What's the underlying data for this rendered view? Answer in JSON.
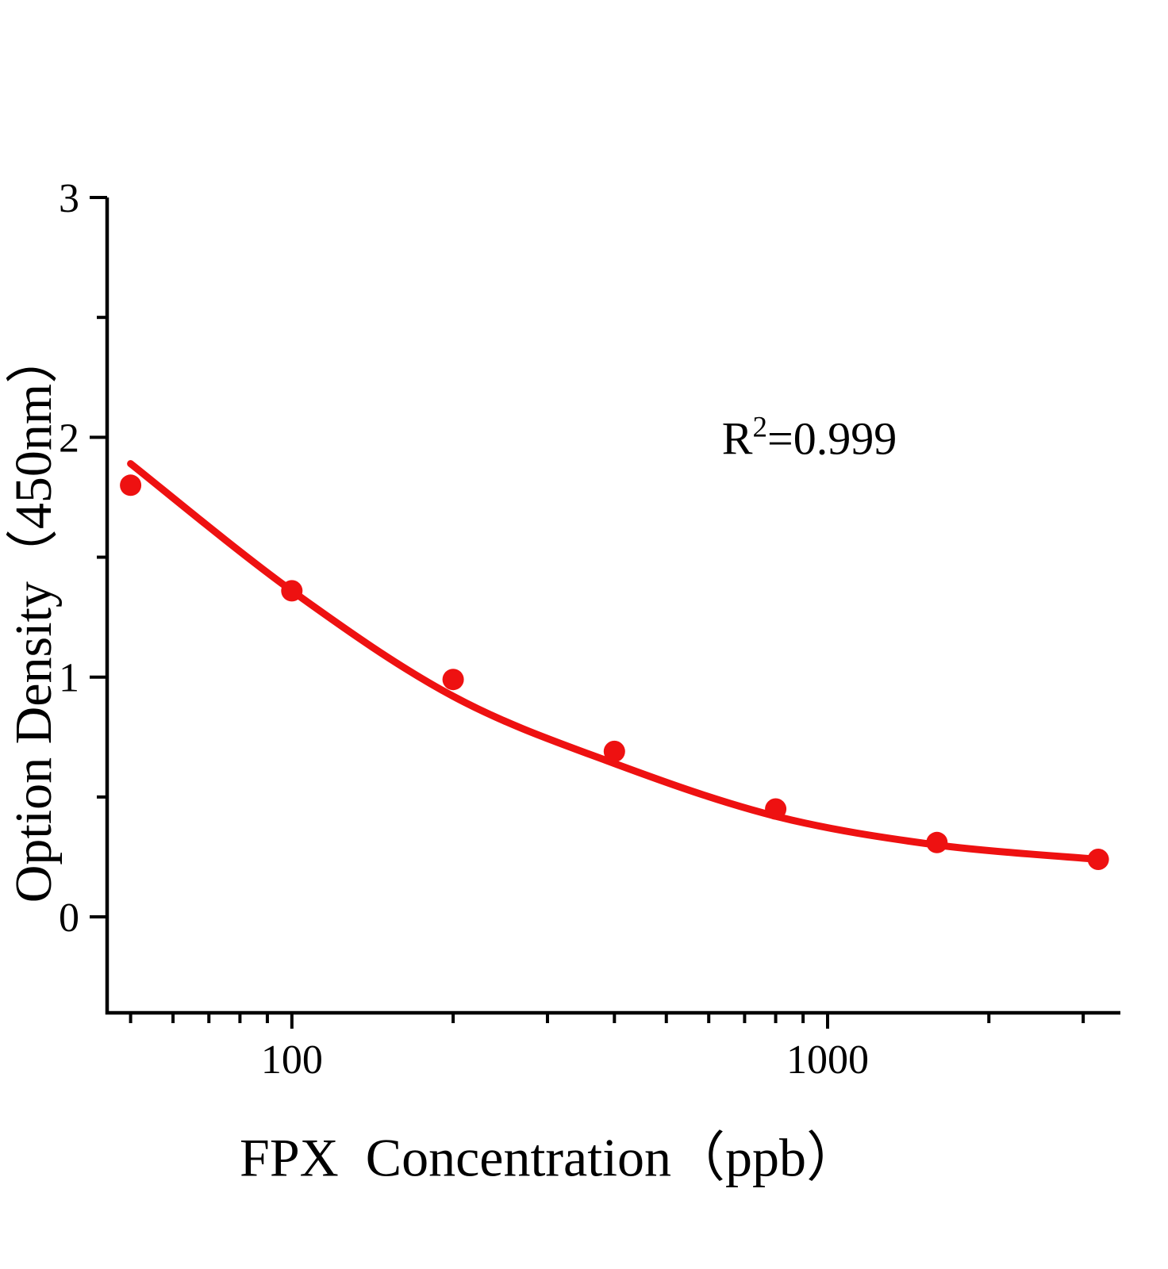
{
  "figure": {
    "background_color": "#ffffff",
    "axis_color": "#000000",
    "accent_color": "#ee1111"
  },
  "chart_data": {
    "type": "scatter",
    "title": "",
    "xlabel": "FPX  Concentration（ppb）",
    "ylabel": "Option Density（450nm）",
    "x_scale": "log",
    "y_scale": "linear",
    "xlim": [
      45.2,
      3520
    ],
    "ylim": [
      -0.4,
      3
    ],
    "x_major_ticks": [
      100,
      1000
    ],
    "x_minor_ticks": [
      50,
      60,
      70,
      80,
      90,
      200,
      300,
      400,
      500,
      600,
      700,
      800,
      900,
      2000,
      3000
    ],
    "y_major_ticks": [
      0,
      1,
      2,
      3
    ],
    "y_minor_ticks": [
      0.5,
      1.5,
      2.5
    ],
    "grid": false,
    "legend": "none",
    "annotation": {
      "text": "R2=0.999",
      "base": "R",
      "sup": "2",
      "rest": "=0.999"
    },
    "series": [
      {
        "name": "standard-points",
        "type": "scatter",
        "color": "#ee1111",
        "marker": "circle",
        "points": [
          {
            "x": 50,
            "od": 1.8
          },
          {
            "x": 100,
            "od": 1.36
          },
          {
            "x": 200,
            "od": 0.99
          },
          {
            "x": 400,
            "od": 0.69
          },
          {
            "x": 800,
            "od": 0.45
          },
          {
            "x": 1600,
            "od": 0.31
          },
          {
            "x": 3200,
            "od": 0.24
          }
        ]
      },
      {
        "name": "fit-curve",
        "type": "line",
        "color": "#ee1111",
        "points": [
          {
            "x": 50,
            "od": 1.89
          },
          {
            "x": 100,
            "od": 1.36
          },
          {
            "x": 200,
            "od": 0.92
          },
          {
            "x": 400,
            "od": 0.64
          },
          {
            "x": 800,
            "od": 0.42
          },
          {
            "x": 1600,
            "od": 0.3
          },
          {
            "x": 3200,
            "od": 0.24
          }
        ]
      }
    ]
  }
}
